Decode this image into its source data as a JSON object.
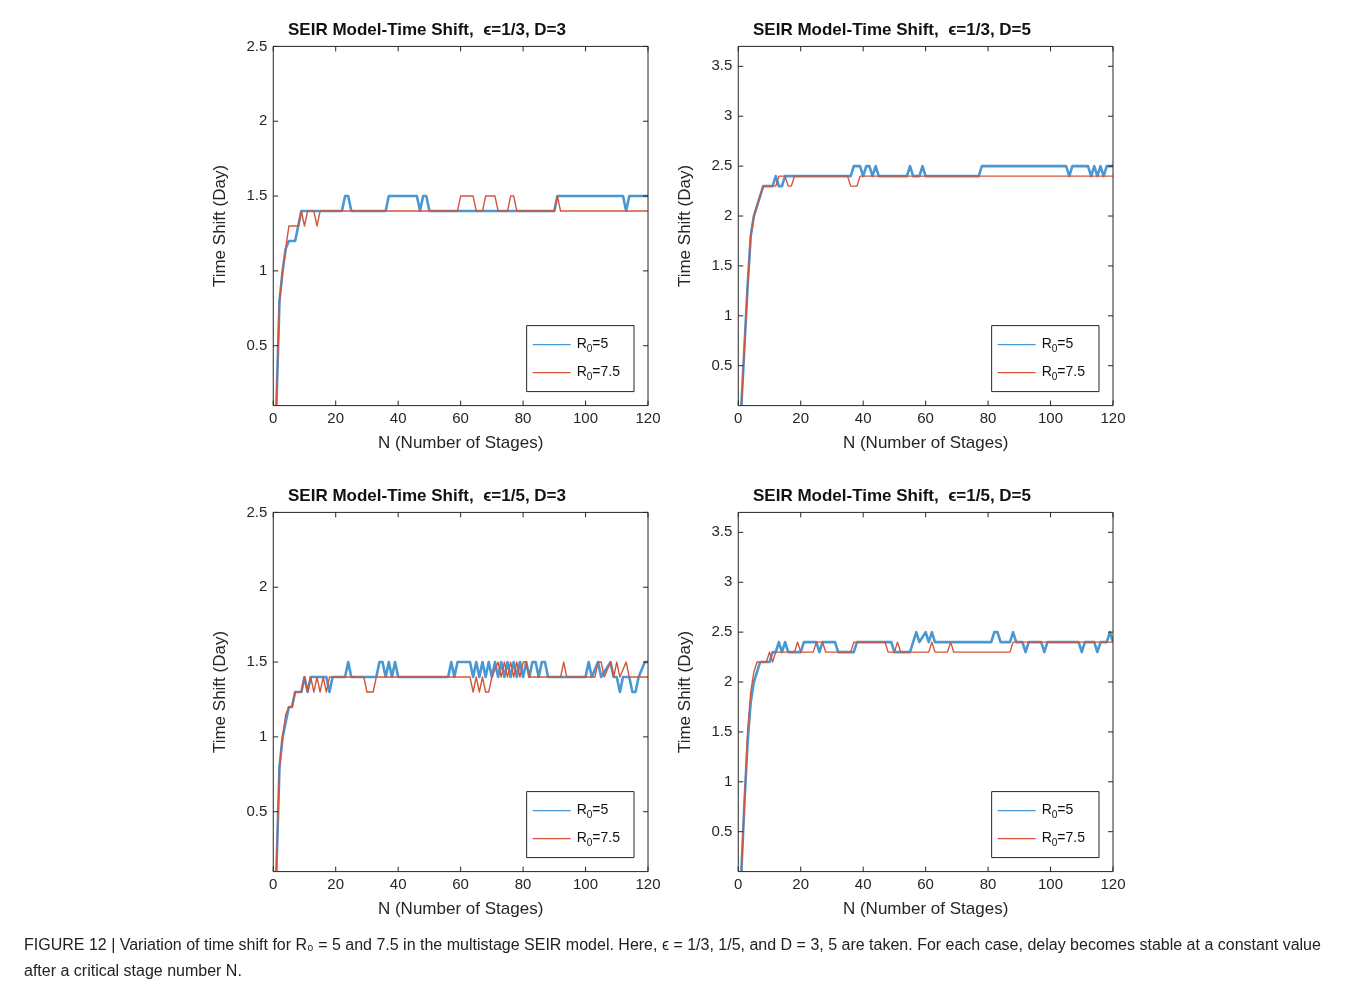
{
  "chart_data": [
    {
      "type": "line",
      "title": "SEIR Model-Time Shift,  ϵ=1/3, D=3",
      "xlabel": "N (Number of Stages)",
      "ylabel": "Time Shift (Day)",
      "xlim": [
        0,
        120
      ],
      "xticks": [
        0,
        20,
        40,
        60,
        80,
        100,
        120
      ],
      "ylim": [
        0.1,
        2.5
      ],
      "yticks": [
        0.5,
        1,
        1.5,
        2,
        2.5
      ],
      "grid": false,
      "legend": "bottom right",
      "marker": "none",
      "line_style": "solid",
      "series": [
        {
          "name": "R$_{0}$=5",
          "color": "#4a98d3",
          "x": [
            1,
            2,
            3,
            4,
            5,
            7,
            8,
            9,
            22,
            23,
            24,
            25,
            36,
            37,
            46,
            47,
            48,
            49,
            50,
            90,
            91,
            112,
            113,
            114,
            120
          ],
          "values": [
            0.1,
            0.8,
            1.0,
            1.15,
            1.2,
            1.2,
            1.3,
            1.4,
            1.4,
            1.5,
            1.5,
            1.4,
            1.4,
            1.5,
            1.5,
            1.4,
            1.5,
            1.5,
            1.4,
            1.4,
            1.5,
            1.5,
            1.4,
            1.5,
            1.5
          ]
        },
        {
          "name": "R$_{0}$=7.5",
          "color": "#d2553a",
          "x": [
            1,
            2,
            3,
            4,
            5,
            8,
            9,
            10,
            11,
            13,
            14,
            15,
            59,
            60,
            64,
            65,
            67,
            68,
            71,
            72,
            75,
            76,
            77,
            78,
            90,
            91,
            92,
            120
          ],
          "values": [
            0.1,
            0.8,
            1.0,
            1.15,
            1.3,
            1.3,
            1.4,
            1.3,
            1.4,
            1.4,
            1.3,
            1.4,
            1.4,
            1.5,
            1.5,
            1.4,
            1.4,
            1.5,
            1.5,
            1.4,
            1.4,
            1.5,
            1.5,
            1.4,
            1.4,
            1.5,
            1.4,
            1.4
          ]
        }
      ]
    },
    {
      "type": "line",
      "title": "SEIR Model-Time Shift,  ϵ=1/3, D=5",
      "xlabel": "N (Number of Stages)",
      "ylabel": "Time Shift (Day)",
      "xlim": [
        0,
        120
      ],
      "xticks": [
        0,
        20,
        40,
        60,
        80,
        100,
        120
      ],
      "ylim": [
        0.1,
        3.7
      ],
      "yticks": [
        0.5,
        1,
        1.5,
        2,
        2.5,
        3,
        3.5
      ],
      "grid": false,
      "legend": "bottom right",
      "marker": "none",
      "line_style": "solid",
      "series": [
        {
          "name": "R$_{0}$=5",
          "color": "#4a98d3",
          "x": [
            1,
            2,
            3,
            4,
            5,
            6,
            7,
            8,
            11,
            12,
            13,
            14,
            15,
            36,
            37,
            39,
            40,
            41,
            42,
            43,
            44,
            45,
            54,
            55,
            56,
            58,
            59,
            60,
            77,
            78,
            105,
            106,
            107,
            111,
            112,
            113,
            114,
            115,
            116,
            117,
            118,
            120
          ],
          "values": [
            0.1,
            0.7,
            1.3,
            1.8,
            2.0,
            2.1,
            2.2,
            2.3,
            2.3,
            2.4,
            2.3,
            2.3,
            2.4,
            2.4,
            2.5,
            2.5,
            2.4,
            2.5,
            2.5,
            2.4,
            2.5,
            2.4,
            2.4,
            2.5,
            2.4,
            2.4,
            2.5,
            2.4,
            2.4,
            2.5,
            2.5,
            2.4,
            2.5,
            2.5,
            2.5,
            2.4,
            2.5,
            2.4,
            2.5,
            2.4,
            2.5,
            2.5
          ]
        },
        {
          "name": "R$_{0}$=7.5",
          "color": "#d2553a",
          "x": [
            1,
            2,
            3,
            4,
            5,
            6,
            7,
            8,
            12,
            13,
            15,
            16,
            17,
            18,
            35,
            36,
            38,
            39,
            120
          ],
          "values": [
            0.1,
            0.7,
            1.3,
            1.8,
            2.0,
            2.1,
            2.2,
            2.3,
            2.3,
            2.4,
            2.4,
            2.3,
            2.3,
            2.4,
            2.4,
            2.3,
            2.3,
            2.4,
            2.4
          ]
        }
      ]
    },
    {
      "type": "line",
      "title": "SEIR Model-Time Shift,  ϵ=1/5, D=3",
      "xlabel": "N (Number of Stages)",
      "ylabel": "Time Shift (Day)",
      "xlim": [
        0,
        120
      ],
      "xticks": [
        0,
        20,
        40,
        60,
        80,
        100,
        120
      ],
      "ylim": [
        0.1,
        2.5
      ],
      "yticks": [
        0.5,
        1,
        1.5,
        2,
        2.5
      ],
      "grid": false,
      "legend": "bottom right",
      "marker": "none",
      "line_style": "solid",
      "series": [
        {
          "name": "R$_{0}$=5",
          "color": "#4a98d3",
          "x": [
            1,
            2,
            3,
            4,
            5,
            6,
            7,
            9,
            10,
            11,
            12,
            17,
            18,
            19,
            23,
            24,
            25,
            33,
            34,
            35,
            36,
            37,
            38,
            39,
            40,
            56,
            57,
            58,
            59,
            63,
            64,
            65,
            66,
            67,
            68,
            69,
            70,
            71,
            72,
            73,
            74,
            75,
            76,
            77,
            78,
            79,
            80,
            81,
            82,
            83,
            84,
            85,
            86,
            87,
            88,
            100,
            101,
            102,
            104,
            105,
            108,
            109,
            110,
            111,
            112,
            114,
            115,
            116,
            117,
            119,
            120
          ],
          "values": [
            0.1,
            0.8,
            1.0,
            1.1,
            1.2,
            1.2,
            1.3,
            1.3,
            1.4,
            1.3,
            1.4,
            1.4,
            1.3,
            1.4,
            1.4,
            1.5,
            1.4,
            1.4,
            1.5,
            1.5,
            1.4,
            1.5,
            1.4,
            1.5,
            1.4,
            1.4,
            1.5,
            1.4,
            1.5,
            1.5,
            1.4,
            1.5,
            1.4,
            1.5,
            1.4,
            1.5,
            1.4,
            1.5,
            1.4,
            1.5,
            1.4,
            1.5,
            1.4,
            1.5,
            1.4,
            1.5,
            1.4,
            1.5,
            1.4,
            1.5,
            1.5,
            1.4,
            1.5,
            1.5,
            1.4,
            1.4,
            1.5,
            1.4,
            1.5,
            1.4,
            1.5,
            1.4,
            1.4,
            1.3,
            1.4,
            1.4,
            1.3,
            1.3,
            1.4,
            1.5,
            1.5
          ]
        },
        {
          "name": "R$_{0}$=7.5",
          "color": "#d2553a",
          "x": [
            1,
            2,
            3,
            4,
            5,
            6,
            7,
            9,
            10,
            11,
            12,
            13,
            14,
            15,
            16,
            17,
            18,
            29,
            30,
            32,
            33,
            63,
            64,
            65,
            66,
            67,
            68,
            69,
            70,
            72,
            73,
            74,
            75,
            76,
            77,
            78,
            79,
            80,
            81,
            82,
            92,
            93,
            94,
            103,
            104,
            105,
            106,
            108,
            109,
            110,
            111,
            113,
            114,
            120
          ],
          "values": [
            0.1,
            0.8,
            1.0,
            1.15,
            1.2,
            1.2,
            1.3,
            1.3,
            1.4,
            1.3,
            1.4,
            1.3,
            1.4,
            1.3,
            1.4,
            1.3,
            1.4,
            1.4,
            1.3,
            1.3,
            1.4,
            1.4,
            1.3,
            1.4,
            1.3,
            1.4,
            1.3,
            1.3,
            1.4,
            1.5,
            1.4,
            1.5,
            1.4,
            1.5,
            1.4,
            1.5,
            1.4,
            1.5,
            1.5,
            1.4,
            1.4,
            1.5,
            1.4,
            1.4,
            1.5,
            1.5,
            1.4,
            1.5,
            1.4,
            1.5,
            1.4,
            1.5,
            1.4,
            1.4
          ]
        }
      ]
    },
    {
      "type": "line",
      "title": "SEIR Model-Time Shift,  ϵ=1/5, D=5",
      "xlabel": "N (Number of Stages)",
      "ylabel": "Time Shift (Day)",
      "xlim": [
        0,
        120
      ],
      "xticks": [
        0,
        20,
        40,
        60,
        80,
        100,
        120
      ],
      "ylim": [
        0.1,
        3.7
      ],
      "yticks": [
        0.5,
        1,
        1.5,
        2,
        2.5,
        3,
        3.5
      ],
      "grid": false,
      "legend": "bottom right",
      "marker": "none",
      "line_style": "solid",
      "annotations": [
        "FIGURE 12 | Variation of time shift for R₀ = 5 and 7.5 in the multistage SEIR model. Here, ϵ = 1/3, 1/5, and D = 3, 5 are taken. For each case, delay becomes stable at a constant value after a critical stage number N."
      ],
      "series": [
        {
          "name": "R$_{0}$=5",
          "color": "#4a98d3",
          "x": [
            1,
            2,
            3,
            4,
            5,
            6,
            7,
            10,
            11,
            12,
            13,
            14,
            15,
            16,
            20,
            21,
            25,
            26,
            27,
            31,
            32,
            37,
            38,
            49,
            50,
            55,
            57,
            58,
            60,
            61,
            62,
            63,
            81,
            82,
            83,
            84,
            87,
            88,
            89,
            91,
            92,
            93,
            97,
            98,
            99,
            109,
            110,
            111,
            114,
            115,
            116,
            118,
            119,
            120
          ],
          "values": [
            0.1,
            0.8,
            1.4,
            1.8,
            2.0,
            2.1,
            2.2,
            2.2,
            2.3,
            2.3,
            2.4,
            2.3,
            2.4,
            2.3,
            2.3,
            2.4,
            2.4,
            2.3,
            2.4,
            2.4,
            2.3,
            2.3,
            2.4,
            2.4,
            2.3,
            2.3,
            2.5,
            2.4,
            2.5,
            2.4,
            2.5,
            2.4,
            2.4,
            2.5,
            2.5,
            2.4,
            2.4,
            2.5,
            2.4,
            2.4,
            2.3,
            2.4,
            2.4,
            2.3,
            2.4,
            2.4,
            2.3,
            2.4,
            2.4,
            2.3,
            2.4,
            2.4,
            2.5,
            2.4
          ]
        },
        {
          "name": "R$_{0}$=7.5",
          "color": "#d2553a",
          "x": [
            1,
            2,
            3,
            4,
            5,
            6,
            9,
            10,
            11,
            12,
            18,
            19,
            20,
            24,
            25,
            27,
            28,
            36,
            37,
            47,
            48,
            50,
            51,
            52,
            61,
            62,
            63,
            67,
            68,
            69,
            87,
            88,
            120
          ],
          "values": [
            0.1,
            0.8,
            1.5,
            1.9,
            2.1,
            2.2,
            2.2,
            2.3,
            2.2,
            2.3,
            2.3,
            2.4,
            2.3,
            2.3,
            2.4,
            2.4,
            2.3,
            2.3,
            2.4,
            2.4,
            2.3,
            2.3,
            2.4,
            2.3,
            2.3,
            2.4,
            2.3,
            2.3,
            2.4,
            2.3,
            2.3,
            2.4,
            2.4
          ]
        }
      ]
    }
  ]
}
